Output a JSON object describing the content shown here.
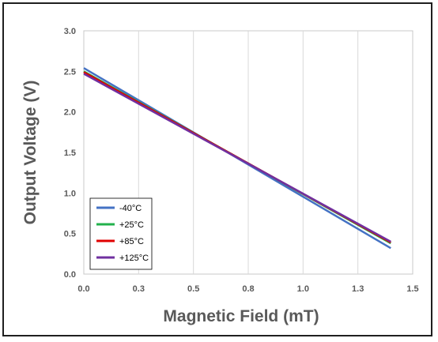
{
  "chart_data": {
    "type": "line",
    "xlabel": "Magnetic Field (mT)",
    "ylabel": "Output Voltage (V)",
    "xlim": [
      0,
      1.5
    ],
    "ylim": [
      0,
      3.0
    ],
    "x_ticks": [
      "0.0",
      "0.3",
      "0.5",
      "0.8",
      "1.0",
      "1.3",
      "1.5"
    ],
    "x_tick_values": [
      0,
      0.25,
      0.5,
      0.75,
      1.0,
      1.25,
      1.5
    ],
    "y_ticks": [
      "0.0",
      "0.5",
      "1.0",
      "1.5",
      "2.0",
      "2.5",
      "3.0"
    ],
    "y_tick_values": [
      0,
      0.5,
      1.0,
      1.5,
      2.0,
      2.5,
      3.0
    ],
    "grid": "vertical",
    "legend_position": "bottom-left",
    "series": [
      {
        "name": "-40°C",
        "color": "#4472c4",
        "x": [
          0,
          1.4
        ],
        "y": [
          2.54,
          0.32
        ]
      },
      {
        "name": "+25°C",
        "color": "#22b14c",
        "x": [
          0,
          1.4
        ],
        "y": [
          2.5,
          0.38
        ]
      },
      {
        "name": "+85°C",
        "color": "#e00000",
        "x": [
          0,
          1.4
        ],
        "y": [
          2.49,
          0.39
        ]
      },
      {
        "name": "+125°C",
        "color": "#7030a0",
        "x": [
          0,
          1.4
        ],
        "y": [
          2.47,
          0.4
        ]
      }
    ]
  }
}
